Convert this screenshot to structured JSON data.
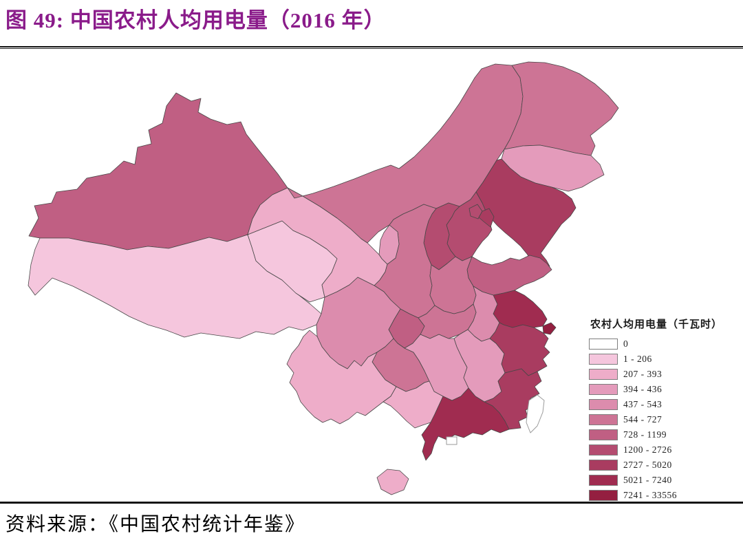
{
  "figure": {
    "title": "图 49:  中国农村人均用电量（2016 年）",
    "title_color": "#8a1b8a",
    "source": "资料来源：《中国农村统计年鉴》"
  },
  "legend": {
    "title": "农村人均用电量（千瓦时）",
    "items": [
      {
        "label": "0",
        "color": "#ffffff"
      },
      {
        "label": "1 - 206",
        "color": "#f5c6dd"
      },
      {
        "label": "207 - 393",
        "color": "#eeadc9"
      },
      {
        "label": "394 - 436",
        "color": "#e49bbb"
      },
      {
        "label": "437 - 543",
        "color": "#dc8cad"
      },
      {
        "label": "544 - 727",
        "color": "#cd7495"
      },
      {
        "label": "728 - 1199",
        "color": "#c05f83"
      },
      {
        "label": "1200 - 2726",
        "color": "#b44c70"
      },
      {
        "label": "2727 - 5020",
        "color": "#a93c60"
      },
      {
        "label": "5021 - 7240",
        "color": "#a02c50"
      },
      {
        "label": "7241 - 33556",
        "color": "#941f40"
      }
    ]
  },
  "map": {
    "type": "choropleth",
    "region": "China provinces",
    "year": "2016",
    "border_color": "#474747",
    "provinces": [
      {
        "id": "xinjiang",
        "name": "新疆",
        "range": "728 - 1199"
      },
      {
        "id": "xizang",
        "name": "西藏",
        "range": "1 - 206"
      },
      {
        "id": "qinghai",
        "name": "青海",
        "range": "1 - 206"
      },
      {
        "id": "gansu",
        "name": "甘肃",
        "range": "207 - 393"
      },
      {
        "id": "neimenggu",
        "name": "内蒙古",
        "range": "544 - 727"
      },
      {
        "id": "ningxia",
        "name": "宁夏",
        "range": "394 - 436"
      },
      {
        "id": "shaanxi",
        "name": "陕西",
        "range": "544 - 727"
      },
      {
        "id": "shanxi",
        "name": "山西",
        "range": "1200 - 2726"
      },
      {
        "id": "hebei",
        "name": "河北",
        "range": "1200 - 2726"
      },
      {
        "id": "beijing",
        "name": "北京",
        "range": "1200 - 2726"
      },
      {
        "id": "tianjin",
        "name": "天津",
        "range": "2727 - 5020"
      },
      {
        "id": "shandong",
        "name": "山东",
        "range": "728 - 1199"
      },
      {
        "id": "henan",
        "name": "河南",
        "range": "544 - 727"
      },
      {
        "id": "heilongjiang",
        "name": "黑龙江",
        "range": "544 - 727"
      },
      {
        "id": "jilin",
        "name": "吉林",
        "range": "394 - 436"
      },
      {
        "id": "liaoning",
        "name": "辽宁",
        "range": "2727 - 5020"
      },
      {
        "id": "jiangsu",
        "name": "江苏",
        "range": "5021 - 7240"
      },
      {
        "id": "shanghai",
        "name": "上海",
        "range": "7241 - 33556"
      },
      {
        "id": "zhejiang",
        "name": "浙江",
        "range": "2727 - 5020"
      },
      {
        "id": "anhui",
        "name": "安徽",
        "range": "437 - 543"
      },
      {
        "id": "hubei",
        "name": "湖北",
        "range": "544 - 727"
      },
      {
        "id": "chongqing",
        "name": "重庆",
        "range": "728 - 1199"
      },
      {
        "id": "sichuan",
        "name": "四川",
        "range": "437 - 543"
      },
      {
        "id": "guizhou",
        "name": "贵州",
        "range": "544 - 727"
      },
      {
        "id": "hunan",
        "name": "湖南",
        "range": "394 - 436"
      },
      {
        "id": "jiangxi",
        "name": "江西",
        "range": "394 - 436"
      },
      {
        "id": "fujian",
        "name": "福建",
        "range": "2727 - 5020"
      },
      {
        "id": "guangdong",
        "name": "广东",
        "range": "5021 - 7240"
      },
      {
        "id": "guangxi",
        "name": "广西",
        "range": "207 - 393"
      },
      {
        "id": "yunnan",
        "name": "云南",
        "range": "207 - 393"
      },
      {
        "id": "hainan",
        "name": "海南",
        "range": "207 - 393"
      },
      {
        "id": "taiwan",
        "name": "台湾",
        "range": "0"
      },
      {
        "id": "xianggang",
        "name": "香港",
        "range": "0"
      }
    ]
  }
}
